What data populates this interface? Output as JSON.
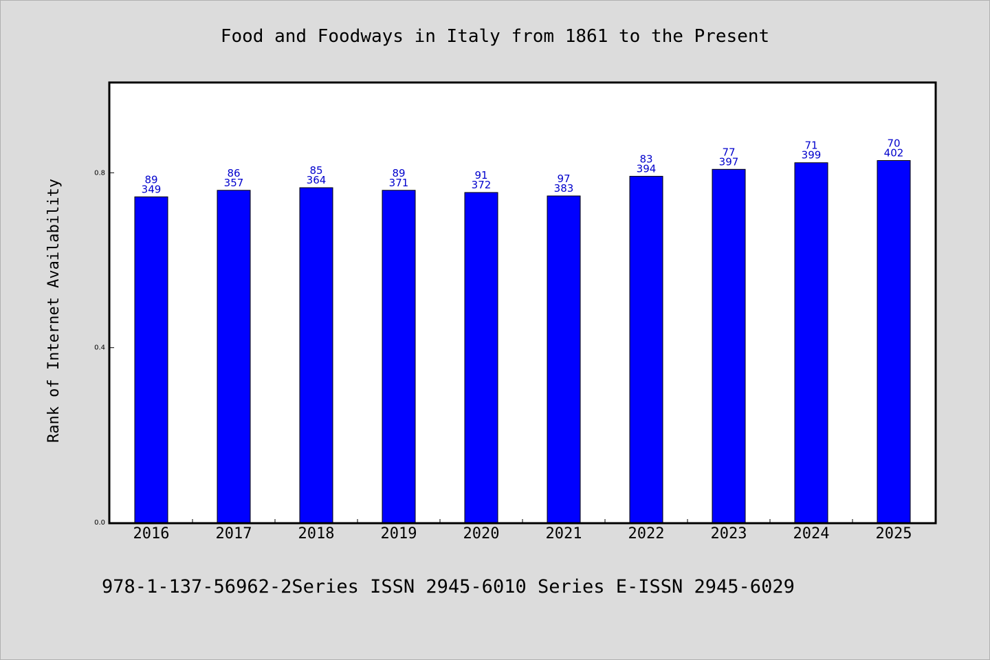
{
  "chart_data": {
    "type": "bar",
    "title": "Food and Foodways in Italy from 1861 to the Present",
    "ylabel": "Rank of Internet Availability",
    "xlabel": "",
    "footer": "978-1-137-56962-2Series ISSN 2945-6010 Series E-ISSN 2945-6029",
    "categories": [
      "2016",
      "2017",
      "2018",
      "2019",
      "2020",
      "2021",
      "2022",
      "2023",
      "2024",
      "2025"
    ],
    "values": [
      0.745,
      0.76,
      0.766,
      0.76,
      0.755,
      0.747,
      0.792,
      0.808,
      0.823,
      0.828
    ],
    "label_top": [
      "89",
      "86",
      "85",
      "89",
      "91",
      "97",
      "83",
      "77",
      "71",
      "70"
    ],
    "label_bottom": [
      "349",
      "357",
      "364",
      "371",
      "372",
      "383",
      "394",
      "397",
      "399",
      "402"
    ],
    "yticks": [
      "0.0",
      "0.4",
      "0.8"
    ],
    "ytick_values": [
      0.0,
      0.4,
      0.8
    ],
    "ylim": [
      0,
      1.005
    ],
    "bar_color": "#0000ff",
    "label_color": "#0000cc",
    "grid": false
  }
}
